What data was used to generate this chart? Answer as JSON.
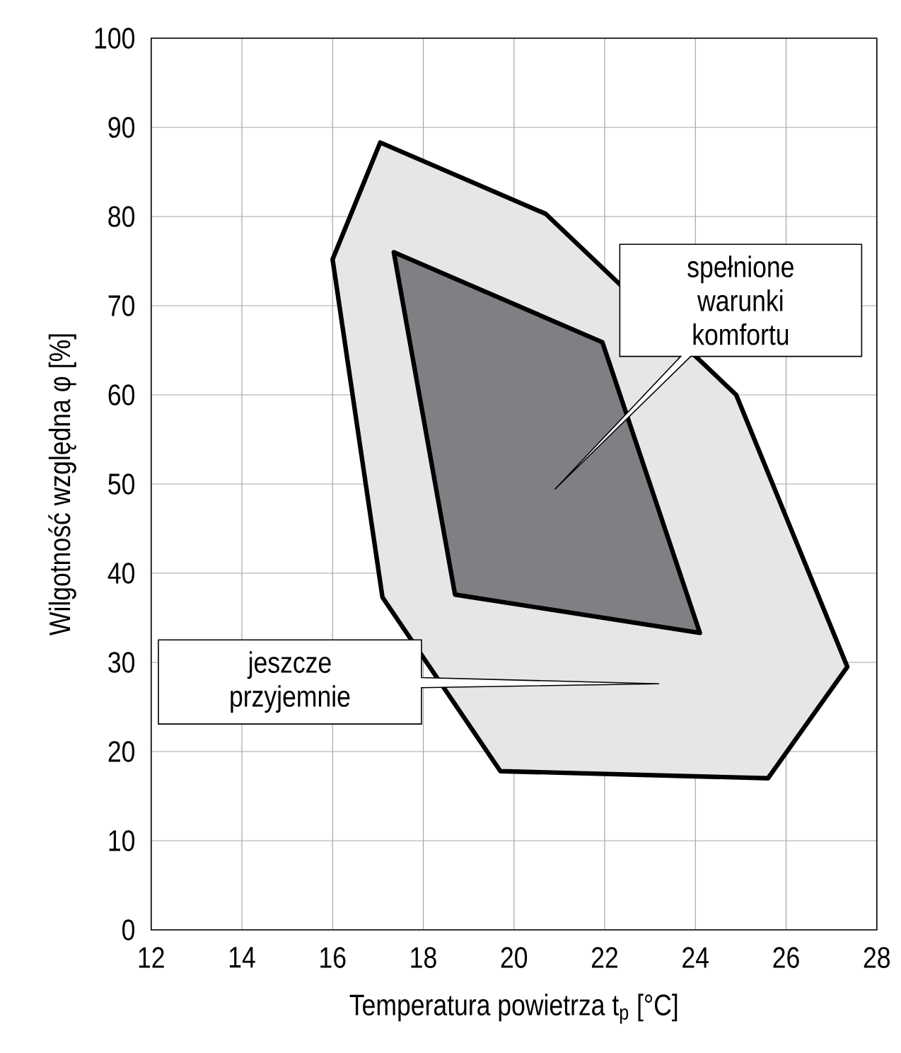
{
  "chart_data": {
    "type": "area",
    "xlabel": "Temperatura powietrza t$_{p}$ [°C]",
    "ylabel": "Wilgotność względna φ [%]",
    "series": [
      {
        "color": "#e6e6e6",
        "x": [
          17.05,
          20.7,
          24.9,
          27.35,
          25.6,
          19.7,
          17.1,
          16.0
        ],
        "values": [
          88.3,
          80.3,
          60,
          29.5,
          17,
          17.8,
          37.3,
          75.2
        ]
      },
      {
        "color": "#7f8083",
        "x": [
          17.35,
          21.95,
          24.1,
          18.7
        ],
        "values": [
          76.0,
          65.9,
          33.3,
          37.6
        ]
      }
    ],
    "annotations": [
      "spełnione warunki komfortu",
      "jeszcze przyjemnie"
    ],
    "xlim": [
      12,
      28
    ],
    "xticks": [
      12,
      14,
      16,
      18,
      20,
      22,
      24,
      26,
      28
    ],
    "ylim": [
      0,
      100
    ],
    "yticks": [
      0,
      10,
      20,
      30,
      40,
      50,
      60,
      70,
      80,
      90,
      100
    ],
    "grid": true,
    "marker": "none",
    "line_style": "solid"
  }
}
